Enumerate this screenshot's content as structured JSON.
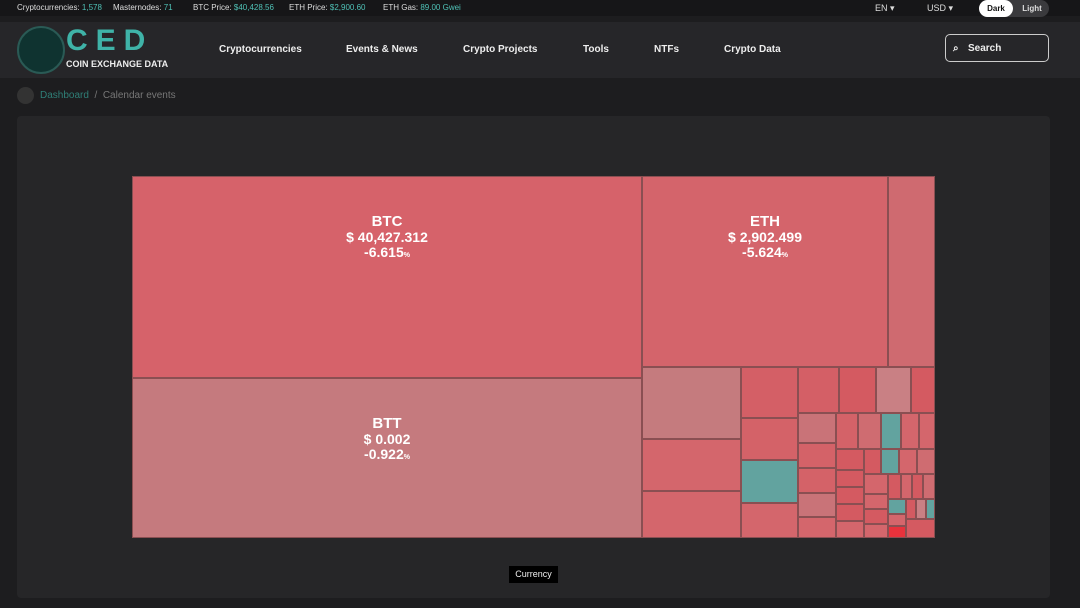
{
  "topbar": {
    "stats": [
      {
        "label": "Cryptocurrencies:",
        "value": "1,578"
      },
      {
        "label": "Masternodes:",
        "value": "71"
      },
      {
        "label": "BTC Price:",
        "value": "$40,428.56"
      },
      {
        "label": "ETH Price:",
        "value": "$2,900.60"
      },
      {
        "label": "ETH Gas:",
        "value": "89.00 Gwei"
      }
    ],
    "language": "EN",
    "currency": "USD",
    "themes": [
      "Dark",
      "Light"
    ]
  },
  "header": {
    "logo": "CED",
    "logo_sub": "COIN EXCHANGE DATA",
    "nav": [
      "Cryptocurrencies",
      "Events & News",
      "Crypto Projects",
      "Tools",
      "NTFs",
      "Crypto Data"
    ],
    "search": "Search"
  },
  "breadcrumb": [
    "Dashboard",
    "Calendar events"
  ],
  "treemap": {
    "tiles": [
      {
        "symbol": "BTC",
        "price": "$ 40,427.312",
        "change": "-6.615",
        "change_suffix": "%"
      },
      {
        "symbol": "ETH",
        "price": "$ 2,902.499",
        "change": "-5.624",
        "change_suffix": "%"
      },
      {
        "symbol": "BTT",
        "price": "$ 0.002",
        "change": "-0.922",
        "change_suffix": "%"
      }
    ],
    "legend": "Currency"
  }
}
